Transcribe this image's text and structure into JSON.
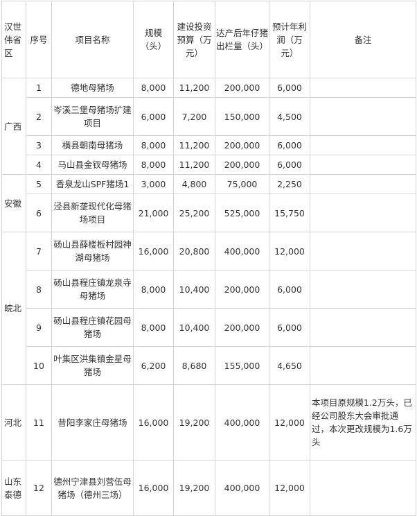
{
  "headers": {
    "region": "汉世伟省区",
    "no": "序号",
    "name": "项目名称",
    "scale": "规模（头）",
    "budget": "建设投资预算（万元）",
    "output": "达产后年仔猪出栏量（头）",
    "profit": "预计年利润（万元）",
    "note": "备注"
  },
  "regions": [
    "广西",
    "安徽",
    "皖北",
    "河北",
    "山东泰德"
  ],
  "rows": [
    {
      "no": "1",
      "name": "德地母猪场",
      "scale": "8,000",
      "budget": "11,200",
      "output": "200,000",
      "profit": "6,000",
      "note": ""
    },
    {
      "no": "2",
      "name": "岑溪三堡母猪场扩建项目",
      "scale": "6,000",
      "budget": "7,200",
      "output": "150,000",
      "profit": "4,500",
      "note": ""
    },
    {
      "no": "3",
      "name": "横县朝南母猪场",
      "scale": "8,000",
      "budget": "11,200",
      "output": "200,000",
      "profit": "6,000",
      "note": ""
    },
    {
      "no": "4",
      "name": "马山县金钗母猪场",
      "scale": "8,000",
      "budget": "11,200",
      "output": "200,000",
      "profit": "6,000",
      "note": ""
    },
    {
      "no": "5",
      "name": "香泉龙山SPF猪场1",
      "scale": "3,000",
      "budget": "4,800",
      "output": "75,000",
      "profit": "2,250",
      "note": ""
    },
    {
      "no": "6",
      "name": "泾县新垄现代化母猪场项目",
      "scale": "21,000",
      "budget": "25,200",
      "output": "525,000",
      "profit": "15,750",
      "note": ""
    },
    {
      "no": "7",
      "name": "砀山县薛楼板村园神湖母猪场",
      "scale": "16,000",
      "budget": "20,800",
      "output": "400,000",
      "profit": "12,000",
      "note": ""
    },
    {
      "no": "8",
      "name": "砀山县程庄镇龙泉寺母猪场",
      "scale": "8,000",
      "budget": "10,400",
      "output": "200,000",
      "profit": "6,000",
      "note": ""
    },
    {
      "no": "9",
      "name": "砀山县程庄镇花园母猪场",
      "scale": "8,000",
      "budget": "10,400",
      "output": "200,000",
      "profit": "6,000",
      "note": ""
    },
    {
      "no": "10",
      "name": "叶集区洪集镇金星母猪场",
      "scale": "6,200",
      "budget": "8,680",
      "output": "155,000",
      "profit": "4,650",
      "note": ""
    },
    {
      "no": "11",
      "name": "昔阳李家庄母猪场",
      "scale": "16,000",
      "budget": "19,200",
      "output": "400,000",
      "profit": "12,000",
      "note": "本项目原规模1.2万头，已经公司股东大会审批通过，本次更改规模为1.6万头"
    },
    {
      "no": "12",
      "name": "德州宁津县刘营伍母猪场（德州三场）",
      "scale": "16,000",
      "budget": "19,200",
      "output": "400,000",
      "profit": "12,000",
      "note": ""
    }
  ]
}
